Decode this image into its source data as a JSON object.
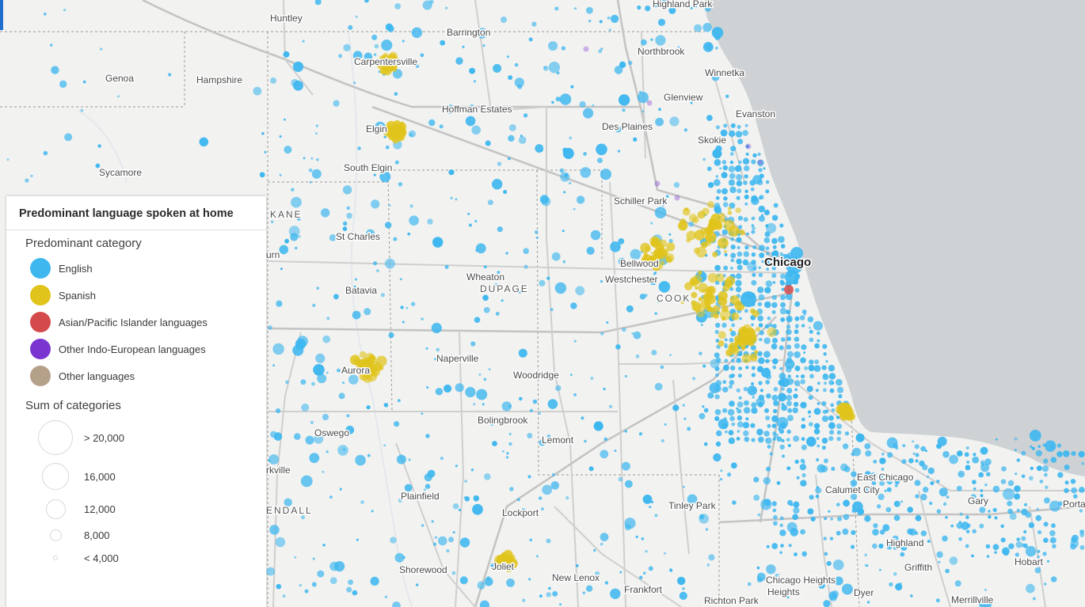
{
  "legend": {
    "title": "Predominant language spoken at home",
    "category_heading": "Predominant category",
    "categories": [
      {
        "label": "English",
        "color": "#3eb7ef"
      },
      {
        "label": "Spanish",
        "color": "#e0c41c"
      },
      {
        "label": "Asian/Pacific Islander languages",
        "color": "#d44a4a"
      },
      {
        "label": "Other Indo-European languages",
        "color": "#7a35d1"
      },
      {
        "label": "Other languages",
        "color": "#b5a08a"
      }
    ],
    "size_heading": "Sum of categories",
    "sizes": [
      {
        "label": "> 20,000"
      },
      {
        "label": "16,000"
      },
      {
        "label": "12,000"
      },
      {
        "label": "8,000"
      },
      {
        "label": "< 4,000"
      }
    ]
  },
  "map": {
    "water_color": "#cfd2d4",
    "land_color": "#f2f2f0",
    "places": {
      "highland_park": "Highland Park",
      "huntley": "Huntley",
      "barrington": "Barrington",
      "carpentersville": "Carpentersville",
      "northbrook": "Northbrook",
      "genoa": "Genoa",
      "hampshire": "Hampshire",
      "winnetka": "Winnetka",
      "glenview": "Glenview",
      "hoffman_estates": "Hoffman Estates",
      "evanston": "Evanston",
      "elgin": "Elgin",
      "des_plaines": "Des Plaines",
      "skokie": "Skokie",
      "sycamore": "Sycamore",
      "south_elgin": "South Elgin",
      "schiller_park": "Schiller Park",
      "st_charles": "St Charles",
      "chicago": "Chicago",
      "bellwood": "Bellwood",
      "wheaton": "Wheaton",
      "westchester": "Westchester",
      "batavia": "Batavia",
      "naperville": "Naperville",
      "woodridge": "Woodridge",
      "aurora": "Aurora",
      "bolingbrook": "Bolingbrook",
      "oswego": "Oswego",
      "lemont": "Lemont",
      "east_chicago": "East Chicago",
      "calumet_city": "Calumet City",
      "plainfield": "Plainfield",
      "tinley_park": "Tinley Park",
      "gary": "Gary",
      "lockport": "Lockport",
      "highland": "Highland",
      "hobart": "Hobart",
      "griffith": "Griffith",
      "shorewood": "Shorewood",
      "joliet": "Joliet",
      "new_lenox": "New Lenox",
      "chicago_heights": "Chicago Heights",
      "frankfort": "Frankfort",
      "dyer": "Dyer",
      "richton_park": "Richton Park",
      "merrillville": "Merrillville",
      "porta": "Porta",
      "urn": "urn",
      "rkville": "rkville"
    },
    "counties": {
      "kane": "KANE",
      "dupage": "DUPAGE",
      "cook": "COOK",
      "kendall": "ENDALL"
    }
  }
}
